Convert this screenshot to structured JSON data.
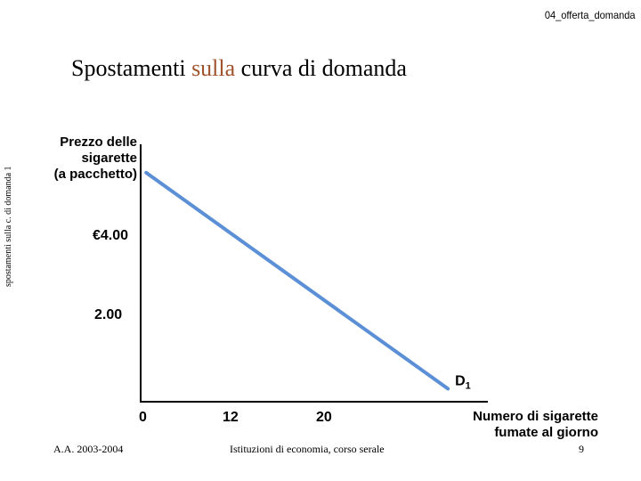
{
  "slide": {
    "header_tag": "04_offerta_domanda",
    "title_before": "Spostamenti ",
    "title_accent": "sulla",
    "title_after": " curva di domanda",
    "side_label": "spostamenti sulla c. di domanda 1",
    "footer_left": "A.A. 2003-2004",
    "footer_center": "Istituzioni di economia, corso serale",
    "page_number": "9"
  },
  "colors": {
    "accent": "#a0522d",
    "curve": "#5b8fd6",
    "axis": "#000000"
  },
  "chart_data": {
    "type": "line",
    "ylabel_lines": [
      "Prezzo delle",
      "sigarette",
      "(a pacchetto)"
    ],
    "xlabel_lines": [
      "Numero di sigarette",
      "fumate al giorno"
    ],
    "y_tick_labels": [
      "€4.00",
      "2.00"
    ],
    "x_tick_labels": [
      "0",
      "12",
      "20"
    ],
    "series": [
      {
        "label_main": "D",
        "label_sub": "1",
        "points": [
          [
            0.6,
            5.3
          ],
          [
            33.5,
            0.3
          ]
        ]
      }
    ]
  }
}
